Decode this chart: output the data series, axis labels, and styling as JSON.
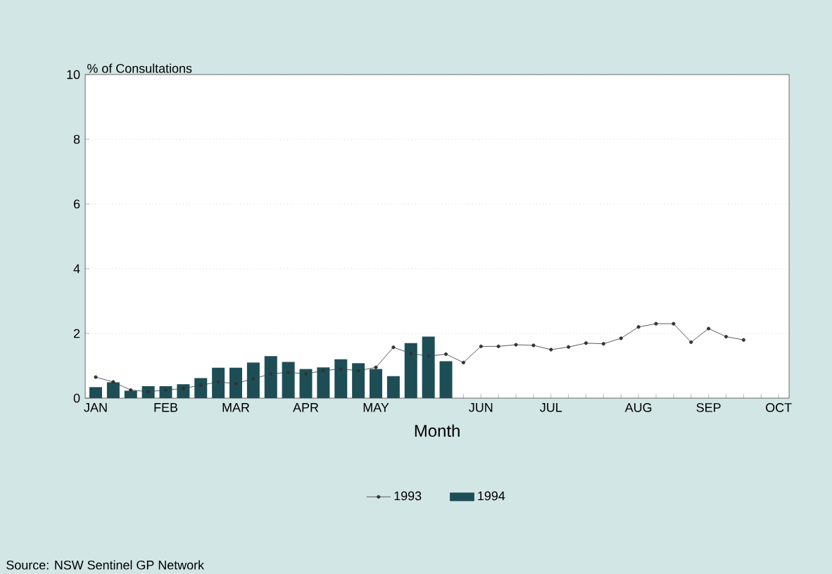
{
  "chart_data": {
    "type": "bar",
    "ylabel": "% of Consultations",
    "xlabel": "Month",
    "categories": [
      "JAN",
      null,
      null,
      null,
      "FEB",
      null,
      null,
      null,
      "MAR",
      null,
      null,
      null,
      "APR",
      null,
      null,
      null,
      "MAY",
      null,
      null,
      null,
      null,
      null,
      "JUN",
      null,
      null,
      null,
      "JUL",
      null,
      null,
      null,
      null,
      "AUG",
      null,
      null,
      null,
      "SEP",
      null,
      null,
      null,
      "OCT"
    ],
    "series": [
      {
        "name": "1993",
        "type": "line",
        "color": "#333333",
        "marker": "circle",
        "values": [
          0.65,
          0.5,
          0.25,
          0.2,
          0.25,
          0.3,
          0.4,
          0.5,
          0.45,
          0.6,
          0.75,
          0.8,
          0.75,
          0.85,
          0.9,
          0.85,
          0.95,
          1.57,
          1.38,
          1.3,
          1.36,
          1.1,
          1.6,
          1.6,
          1.65,
          1.63,
          1.5,
          1.58,
          1.7,
          1.68,
          1.85,
          2.2,
          2.3,
          2.3,
          1.73,
          2.15,
          1.9,
          1.8,
          null,
          null
        ]
      },
      {
        "name": "1994",
        "color": "#1e4e55",
        "values": [
          0.34,
          0.49,
          0.23,
          0.37,
          0.37,
          0.43,
          0.62,
          0.94,
          0.94,
          1.1,
          1.3,
          1.12,
          0.9,
          0.95,
          1.2,
          1.08,
          0.9,
          0.68,
          1.7,
          1.9,
          1.14,
          null,
          null,
          null,
          null,
          null,
          null,
          null,
          null,
          null,
          null,
          null,
          null,
          null,
          null,
          null,
          null,
          null,
          null,
          null
        ]
      }
    ],
    "ylim": [
      0,
      10
    ],
    "yticks": [
      0,
      2,
      4,
      6,
      8,
      10
    ],
    "grid": "y",
    "legend": "bottom",
    "annotations": [
      "Source: NSW Sentinel GP Network"
    ]
  }
}
